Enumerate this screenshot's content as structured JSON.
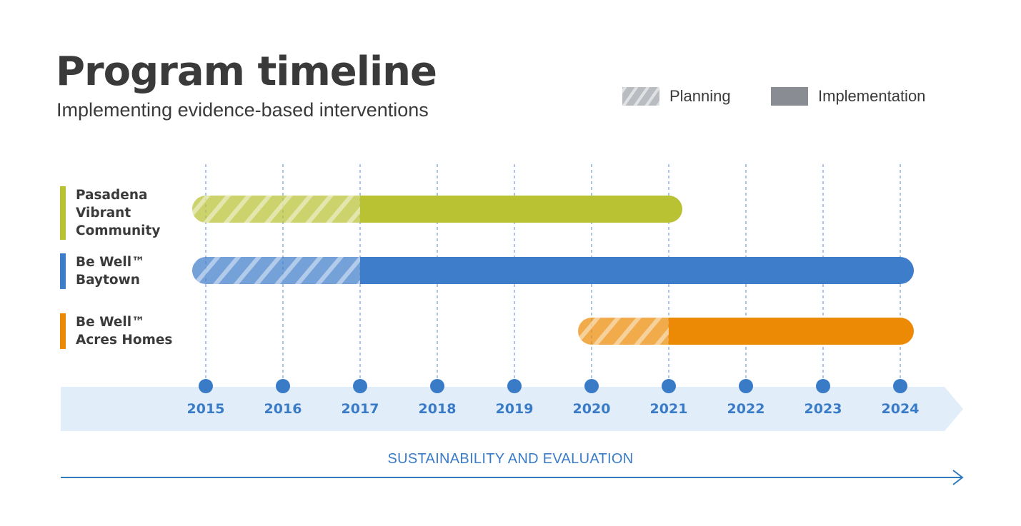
{
  "header": {
    "title": "Program timeline",
    "subtitle": "Implementing evidence-based interventions"
  },
  "legend": {
    "planning_label": "Planning",
    "implementation_label": "Implementation"
  },
  "chart_data": {
    "type": "gantt",
    "title": "Program timeline",
    "subtitle": "Implementing evidence-based interventions",
    "years": [
      "2015",
      "2016",
      "2017",
      "2018",
      "2019",
      "2020",
      "2021",
      "2022",
      "2023",
      "2024"
    ],
    "xlim": [
      2015,
      2024
    ],
    "grid": true,
    "legend_placement": "top-right",
    "series": [
      {
        "name": "Pasadena Vibrant Community",
        "label_lines": "Pasadena\nVibrant\nCommunity",
        "color": "#b8c233",
        "planning_start": 2015,
        "planning_end": 2017,
        "implementation_start": 2017,
        "implementation_end": 2021
      },
      {
        "name": "Be Well™ Baytown",
        "label_lines": "Be Well™\nBaytown",
        "color": "#3e7dc9",
        "planning_start": 2015,
        "planning_end": 2017,
        "implementation_start": 2017,
        "implementation_end": 2024
      },
      {
        "name": "Be Well™ Acres Homes",
        "label_lines": "Be Well™\nAcres Homes",
        "color": "#ec8a05",
        "planning_start": 2020,
        "planning_end": 2021,
        "implementation_start": 2021,
        "implementation_end": 2024
      }
    ],
    "annotation": "SUSTAINABILITY AND EVALUATION"
  },
  "colors": {
    "axis_band": "#e1eef9",
    "year_dot": "#3a7bc8",
    "grid_line": "#3a7bc8",
    "arrow": "#2f7bbd",
    "text_dark": "#3a3a3a"
  }
}
